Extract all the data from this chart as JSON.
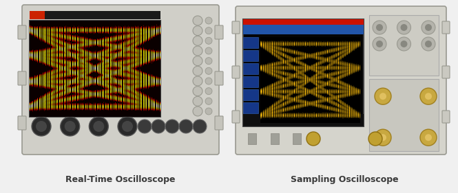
{
  "background_color": "#f0f0f0",
  "label_left": "Real-Time Oscilloscope",
  "label_right": "Sampling Oscilloscope",
  "label_fontsize": 9,
  "label_fontweight": "bold",
  "label_color": "#3a3a3a",
  "fig_width": 6.65,
  "fig_height": 2.81,
  "body_color": "#d0cfc8",
  "body_edge_color": "#999990",
  "screen_bg": "#000000",
  "knob_color": "#b0b0a8",
  "knob_edge": "#888880"
}
